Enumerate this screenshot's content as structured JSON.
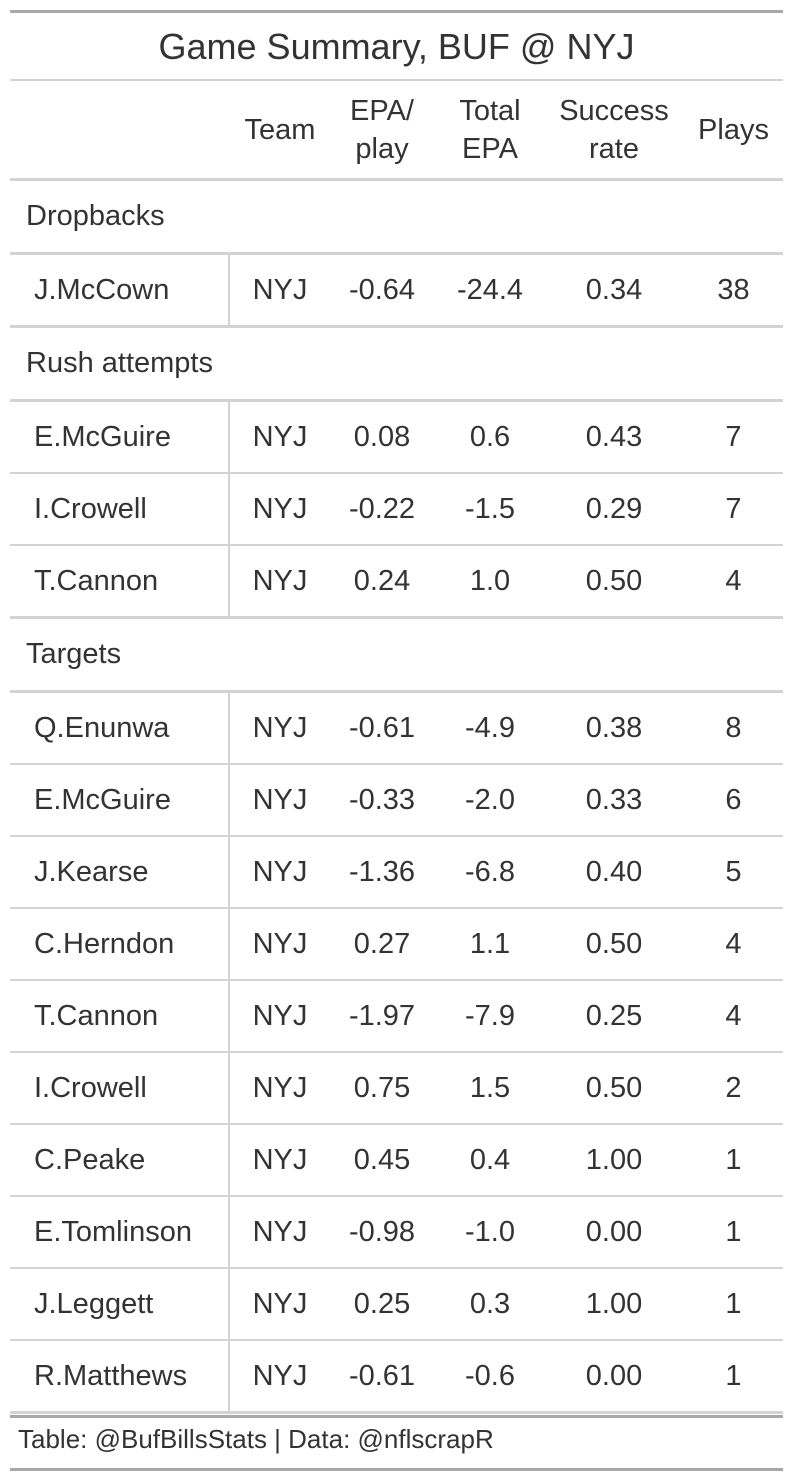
{
  "title": "Game Summary, BUF @ NYJ",
  "columns": {
    "team": "Team",
    "epa_play": "EPA/\nplay",
    "total_epa": "Total\nEPA",
    "success_rate": "Success\nrate",
    "plays": "Plays"
  },
  "groups": [
    {
      "label": "Dropbacks",
      "rows": [
        {
          "player": "J.McCown",
          "team": "NYJ",
          "epa_play": "-0.64",
          "total_epa": "-24.4",
          "success_rate": "0.34",
          "plays": "38"
        }
      ]
    },
    {
      "label": "Rush attempts",
      "rows": [
        {
          "player": "E.McGuire",
          "team": "NYJ",
          "epa_play": "0.08",
          "total_epa": "0.6",
          "success_rate": "0.43",
          "plays": "7"
        },
        {
          "player": "I.Crowell",
          "team": "NYJ",
          "epa_play": "-0.22",
          "total_epa": "-1.5",
          "success_rate": "0.29",
          "plays": "7"
        },
        {
          "player": "T.Cannon",
          "team": "NYJ",
          "epa_play": "0.24",
          "total_epa": "1.0",
          "success_rate": "0.50",
          "plays": "4"
        }
      ]
    },
    {
      "label": "Targets",
      "rows": [
        {
          "player": "Q.Enunwa",
          "team": "NYJ",
          "epa_play": "-0.61",
          "total_epa": "-4.9",
          "success_rate": "0.38",
          "plays": "8"
        },
        {
          "player": "E.McGuire",
          "team": "NYJ",
          "epa_play": "-0.33",
          "total_epa": "-2.0",
          "success_rate": "0.33",
          "plays": "6"
        },
        {
          "player": "J.Kearse",
          "team": "NYJ",
          "epa_play": "-1.36",
          "total_epa": "-6.8",
          "success_rate": "0.40",
          "plays": "5"
        },
        {
          "player": "C.Herndon",
          "team": "NYJ",
          "epa_play": "0.27",
          "total_epa": "1.1",
          "success_rate": "0.50",
          "plays": "4"
        },
        {
          "player": "T.Cannon",
          "team": "NYJ",
          "epa_play": "-1.97",
          "total_epa": "-7.9",
          "success_rate": "0.25",
          "plays": "4"
        },
        {
          "player": "I.Crowell",
          "team": "NYJ",
          "epa_play": "0.75",
          "total_epa": "1.5",
          "success_rate": "0.50",
          "plays": "2"
        },
        {
          "player": "C.Peake",
          "team": "NYJ",
          "epa_play": "0.45",
          "total_epa": "0.4",
          "success_rate": "1.00",
          "plays": "1"
        },
        {
          "player": "E.Tomlinson",
          "team": "NYJ",
          "epa_play": "-0.98",
          "total_epa": "-1.0",
          "success_rate": "0.00",
          "plays": "1"
        },
        {
          "player": "J.Leggett",
          "team": "NYJ",
          "epa_play": "0.25",
          "total_epa": "0.3",
          "success_rate": "1.00",
          "plays": "1"
        },
        {
          "player": "R.Matthews",
          "team": "NYJ",
          "epa_play": "-0.61",
          "total_epa": "-0.6",
          "success_rate": "0.00",
          "plays": "1"
        }
      ]
    }
  ],
  "source_note": "Table: @BufBillsStats | Data: @nflscrapR"
}
